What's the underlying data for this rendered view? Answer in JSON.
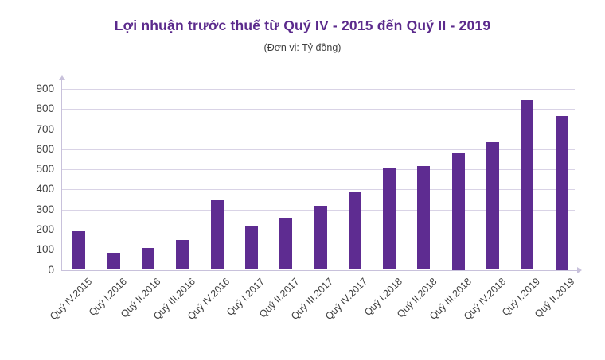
{
  "header": {
    "title": "Lợi nhuận trước thuế từ Quý IV - 2015 đến Quý II - 2019",
    "subtitle": "(Đơn vị: Tỷ đồng)"
  },
  "colors": {
    "bar": "#5E2C91",
    "title_text": "#5B2A8C",
    "subtitle_text": "#404040",
    "tick_text": "#3F3F3F",
    "gridline": "#D9D3E6",
    "axis_line": "#C8C1DB"
  },
  "chart_data": {
    "type": "bar",
    "title": "Lợi nhuận trước thuế từ Quý IV - 2015 đến Quý II - 2019",
    "subtitle": "(Đơn vị: Tỷ đồng)",
    "unit": "Tỷ đồng",
    "categories": [
      "Quý IV.2015",
      "Quý I.2016",
      "Quý II.2016",
      "Quý III.2016",
      "Quý IV.2016",
      "Quý I.2017",
      "Quý II.2017",
      "Quý III.2017",
      "Quý IV.2017",
      "Quý I.2018",
      "Quý II.2018",
      "Quý III.2018",
      "Quý IV.2018",
      "Quý I.2019",
      "Quý II.2019"
    ],
    "values": [
      190,
      85,
      110,
      150,
      345,
      220,
      260,
      320,
      390,
      510,
      515,
      585,
      635,
      845,
      765
    ],
    "xlabel": "",
    "ylabel": "",
    "ylim": [
      0,
      900
    ],
    "yticks": [
      0,
      100,
      200,
      300,
      400,
      500,
      600,
      700,
      800,
      900
    ],
    "grid": true,
    "legend": false,
    "x_tick_rotation_deg": 45,
    "axis_arrows": true
  }
}
